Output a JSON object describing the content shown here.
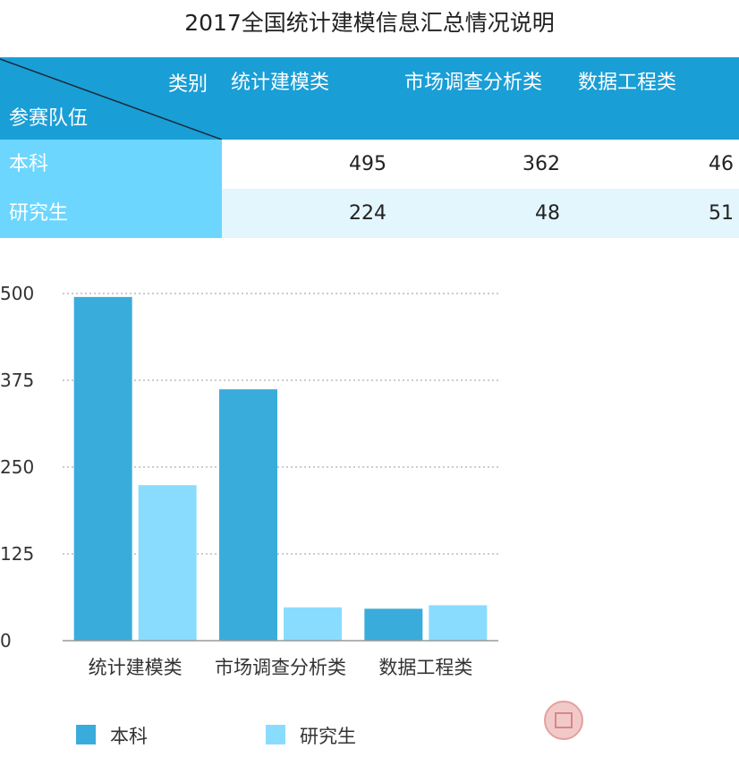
{
  "title": "2017全国统计建模信息汇总情况说明",
  "table": {
    "corner_top": "类别",
    "corner_bottom": "参赛队伍",
    "columns": [
      "统计建模类",
      "市场调查分析类",
      "数据工程类"
    ],
    "rows": [
      {
        "label": "本科",
        "values": [
          "495",
          "362",
          "46"
        ]
      },
      {
        "label": "研究生",
        "values": [
          "224",
          "48",
          "51"
        ]
      }
    ],
    "header_color": "#1a9ed6",
    "row_label_color": "#6cd6ff",
    "alt_row_color": "#e3f5fd"
  },
  "chart_data": {
    "type": "bar",
    "categories": [
      "统计建模类",
      "市场调查分析类",
      "数据工程类"
    ],
    "series": [
      {
        "name": "本科",
        "values": [
          495,
          362,
          46
        ],
        "color": "#3aacdc"
      },
      {
        "name": "研究生",
        "values": [
          224,
          48,
          51
        ],
        "color": "#8adcff"
      }
    ],
    "ylim": [
      0,
      500
    ],
    "yticks": [
      0,
      125,
      250,
      375,
      500
    ],
    "grid": true,
    "legend": "bottom-left",
    "xlabel": "",
    "ylabel": ""
  },
  "stamp_icon": "seal-stamp-icon"
}
